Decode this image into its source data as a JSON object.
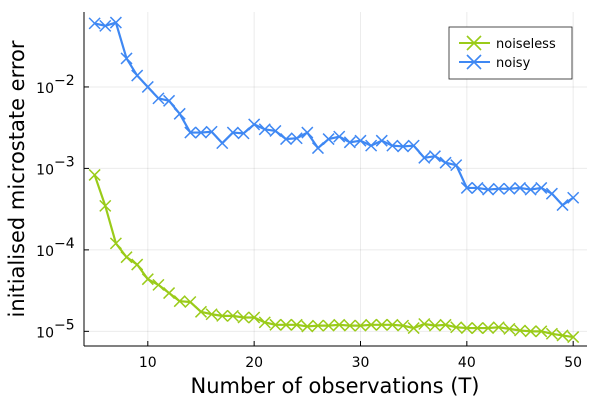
{
  "chart_data": {
    "type": "line",
    "xlabel": "Number of observations (T)",
    "ylabel": "initialised microstate error",
    "xlim": [
      4.0,
      51.3
    ],
    "ylim_log10": [
      -5.18,
      -1.08
    ],
    "y_scale": "log",
    "x_ticks": [
      10,
      20,
      30,
      40,
      50
    ],
    "y_ticks": [
      {
        "exp": -5,
        "base": "10",
        "label": "−5"
      },
      {
        "exp": -4,
        "base": "10",
        "label": "−4"
      },
      {
        "exp": -3,
        "base": "10",
        "label": "−3"
      },
      {
        "exp": -2,
        "base": "10",
        "label": "−2"
      }
    ],
    "grid": true,
    "legend_position": "top-right",
    "x": [
      5,
      6,
      7,
      8,
      9,
      10,
      11,
      12,
      13,
      14,
      15,
      16,
      17,
      18,
      19,
      20,
      21,
      22,
      23,
      24,
      25,
      26,
      27,
      28,
      29,
      30,
      31,
      32,
      33,
      34,
      35,
      36,
      37,
      38,
      39,
      40,
      41,
      42,
      43,
      44,
      45,
      46,
      47,
      48,
      49,
      50
    ],
    "series": [
      {
        "name": "noiseless",
        "color": "#9acb19",
        "log10_values": [
          -3.08,
          -3.46,
          -3.92,
          -4.09,
          -4.18,
          -4.36,
          -4.43,
          -4.53,
          -4.63,
          -4.64,
          -4.76,
          -4.79,
          -4.81,
          -4.81,
          -4.83,
          -4.83,
          -4.89,
          -4.92,
          -4.92,
          -4.92,
          -4.94,
          -4.93,
          -4.93,
          -4.92,
          -4.93,
          -4.93,
          -4.92,
          -4.92,
          -4.92,
          -4.93,
          -4.96,
          -4.91,
          -4.93,
          -4.92,
          -4.95,
          -4.96,
          -4.96,
          -4.96,
          -4.95,
          -4.97,
          -4.99,
          -5.0,
          -5.0,
          -5.03,
          -5.05,
          -5.07
        ]
      },
      {
        "name": "noisy",
        "color": "#3f88f3",
        "log10_values": [
          -1.22,
          -1.25,
          -1.21,
          -1.65,
          -1.86,
          -2.0,
          -2.14,
          -2.17,
          -2.33,
          -2.56,
          -2.56,
          -2.55,
          -2.69,
          -2.56,
          -2.57,
          -2.46,
          -2.52,
          -2.54,
          -2.64,
          -2.63,
          -2.56,
          -2.75,
          -2.64,
          -2.61,
          -2.68,
          -2.66,
          -2.72,
          -2.66,
          -2.72,
          -2.73,
          -2.72,
          -2.87,
          -2.85,
          -2.93,
          -2.96,
          -3.24,
          -3.24,
          -3.26,
          -3.25,
          -3.25,
          -3.24,
          -3.26,
          -3.24,
          -3.31,
          -3.45,
          -3.36
        ]
      }
    ]
  }
}
